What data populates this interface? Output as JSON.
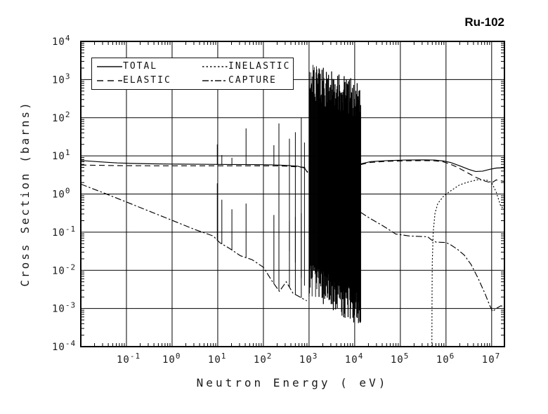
{
  "chart_data": {
    "type": "line",
    "title": "Ru-102",
    "xlabel": "Neutron Energy ( eV)",
    "ylabel": "Cross Section (barns)",
    "x_log_range": [
      -2,
      7.28
    ],
    "y_log_range": [
      -4,
      4
    ],
    "x_ticks_exp": [
      -1,
      0,
      1,
      2,
      3,
      4,
      5,
      6,
      7
    ],
    "y_ticks_exp": [
      4,
      3,
      2,
      1,
      0,
      -1,
      -2,
      -3,
      -4
    ],
    "grid": true,
    "legend": [
      {
        "label": "TOTAL",
        "series": "total",
        "dash": "solid"
      },
      {
        "label": "INELASTIC",
        "series": "inelastic",
        "dash": "dot"
      },
      {
        "label": "ELASTIC",
        "series": "elastic",
        "dash": "dash"
      },
      {
        "label": "CAPTURE",
        "series": "capture",
        "dash": "dashdot"
      }
    ],
    "series": {
      "total": {
        "dash": "solid",
        "segments": [
          [
            [
              -2,
              0.88
            ],
            [
              -1.6,
              0.845
            ],
            [
              -1.2,
              0.815
            ],
            [
              -0.8,
              0.8
            ],
            [
              -0.4,
              0.79
            ],
            [
              0,
              0.785
            ],
            [
              0.6,
              0.78
            ],
            [
              1.2,
              0.775
            ],
            [
              1.8,
              0.77
            ],
            [
              2.2,
              0.765
            ],
            [
              2.5,
              0.75
            ],
            [
              2.75,
              0.73
            ],
            [
              2.9,
              0.68
            ],
            [
              2.97,
              0.56
            ]
          ],
          [
            [
              4.13,
              0.79
            ],
            [
              4.35,
              0.85
            ],
            [
              4.7,
              0.875
            ],
            [
              5.1,
              0.89
            ],
            [
              5.5,
              0.895
            ],
            [
              5.75,
              0.89
            ],
            [
              5.95,
              0.865
            ],
            [
              6.1,
              0.825
            ],
            [
              6.3,
              0.74
            ],
            [
              6.5,
              0.645
            ],
            [
              6.65,
              0.59
            ],
            [
              6.8,
              0.6
            ],
            [
              6.95,
              0.645
            ],
            [
              7.1,
              0.68
            ],
            [
              7.28,
              0.69
            ]
          ]
        ],
        "spikes": [
          [
            0.99,
            1.3
          ],
          [
            1.09,
            1.02
          ],
          [
            1.31,
            0.95
          ],
          [
            1.62,
            1.72
          ],
          [
            2.23,
            1.28
          ],
          [
            2.34,
            1.85
          ],
          [
            2.57,
            1.45
          ],
          [
            2.7,
            1.62
          ],
          [
            2.83,
            2.0
          ],
          [
            2.9,
            1.35
          ],
          [
            3.11,
            3.25
          ]
        ],
        "dips": [
          [
            2.34,
            -1.2
          ],
          [
            2.57,
            -1.5
          ],
          [
            2.7,
            -1.8
          ],
          [
            2.83,
            -2.2
          ],
          [
            2.9,
            -2.4
          ]
        ]
      },
      "elastic": {
        "dash": "dash",
        "segments": [
          [
            [
              -2,
              0.76
            ],
            [
              -1.2,
              0.745
            ],
            [
              -0.4,
              0.74
            ],
            [
              0.6,
              0.74
            ],
            [
              1.6,
              0.74
            ],
            [
              2.4,
              0.735
            ],
            [
              2.9,
              0.7
            ],
            [
              2.97,
              0.58
            ]
          ],
          [
            [
              4.13,
              0.77
            ],
            [
              4.35,
              0.83
            ],
            [
              4.7,
              0.855
            ],
            [
              5.1,
              0.87
            ],
            [
              5.5,
              0.875
            ],
            [
              5.75,
              0.87
            ],
            [
              5.95,
              0.84
            ],
            [
              6.1,
              0.78
            ],
            [
              6.25,
              0.7
            ],
            [
              6.45,
              0.57
            ],
            [
              6.65,
              0.44
            ],
            [
              6.85,
              0.34
            ],
            [
              7.0,
              0.29
            ],
            [
              7.1,
              0.37
            ],
            [
              7.28,
              0.33
            ]
          ]
        ],
        "spikes": [],
        "dips": []
      },
      "inelastic": {
        "dash": "dot",
        "segments": [
          [
            [
              5.69,
              -4.0
            ],
            [
              5.695,
              -2.5
            ],
            [
              5.7,
              -1.8
            ],
            [
              5.72,
              -1.0
            ],
            [
              5.76,
              -0.5
            ],
            [
              5.82,
              -0.25
            ],
            [
              5.95,
              -0.05
            ],
            [
              6.1,
              0.08
            ],
            [
              6.3,
              0.24
            ],
            [
              6.5,
              0.32
            ],
            [
              6.7,
              0.375
            ],
            [
              6.9,
              0.36
            ],
            [
              7.0,
              0.3
            ],
            [
              7.1,
              0.05
            ],
            [
              7.2,
              -0.32
            ],
            [
              7.28,
              -0.4
            ]
          ]
        ],
        "spikes": [],
        "dips": []
      },
      "capture": {
        "dash": "dashdot",
        "segments": [
          [
            [
              -2,
              0.26
            ],
            [
              -1.5,
              0.03
            ],
            [
              -1,
              -0.21
            ],
            [
              -0.5,
              -0.45
            ],
            [
              0,
              -0.69
            ],
            [
              0.5,
              -0.93
            ],
            [
              0.9,
              -1.1
            ],
            [
              1.05,
              -1.28
            ],
            [
              1.25,
              -1.42
            ],
            [
              1.5,
              -1.62
            ],
            [
              1.75,
              -1.72
            ],
            [
              2.0,
              -1.92
            ],
            [
              2.2,
              -2.3
            ],
            [
              2.35,
              -2.55
            ],
            [
              2.5,
              -2.3
            ],
            [
              2.65,
              -2.6
            ],
            [
              2.8,
              -2.7
            ],
            [
              2.95,
              -2.8
            ]
          ],
          [
            [
              4.13,
              -0.48
            ],
            [
              4.35,
              -0.65
            ],
            [
              4.6,
              -0.82
            ],
            [
              4.9,
              -1.05
            ],
            [
              5.2,
              -1.1
            ],
            [
              5.6,
              -1.12
            ],
            [
              5.68,
              -1.2
            ],
            [
              5.78,
              -1.26
            ],
            [
              6.0,
              -1.27
            ],
            [
              6.1,
              -1.33
            ],
            [
              6.25,
              -1.45
            ],
            [
              6.4,
              -1.6
            ],
            [
              6.55,
              -1.85
            ],
            [
              6.7,
              -2.2
            ],
            [
              6.85,
              -2.6
            ],
            [
              6.95,
              -2.9
            ],
            [
              7.02,
              -3.08
            ],
            [
              7.1,
              -3.0
            ],
            [
              7.2,
              -2.93
            ],
            [
              7.28,
              -2.95
            ]
          ]
        ],
        "spikes": [
          [
            0.99,
            0.28
          ],
          [
            1.09,
            -0.15
          ],
          [
            1.31,
            -0.4
          ],
          [
            1.62,
            -0.25
          ],
          [
            2.23,
            -0.55
          ],
          [
            2.34,
            -0.35
          ],
          [
            2.57,
            -0.7
          ],
          [
            2.7,
            -0.6
          ],
          [
            2.83,
            -0.5
          ]
        ],
        "dips": []
      }
    },
    "resonance_band": {
      "x0": 3.0,
      "x1": 4.13,
      "count": 120,
      "seed": 123457,
      "top0": 2.95,
      "top1": 2.45,
      "top_jitter": 0.5,
      "bot0": -1.8,
      "bot1": -2.6,
      "bot_jitter": 0.9
    }
  }
}
